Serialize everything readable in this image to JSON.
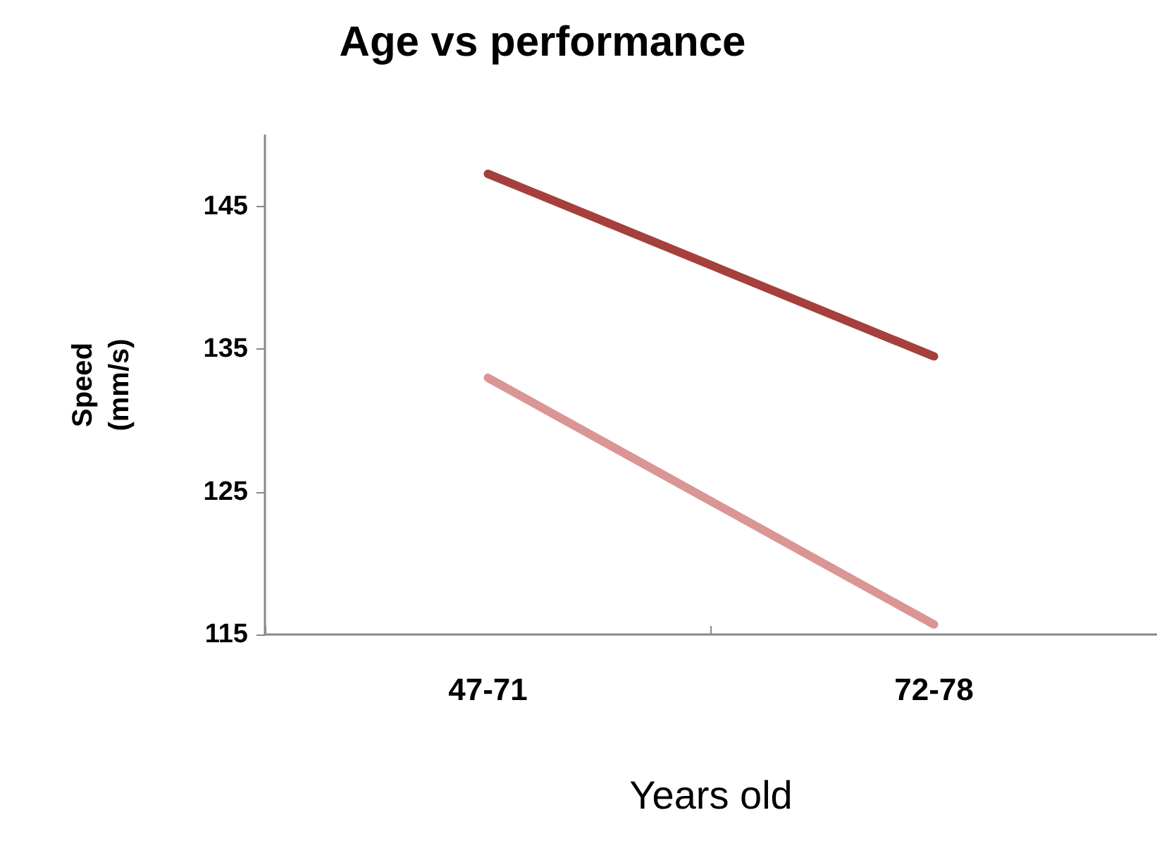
{
  "chart_data": {
    "type": "line",
    "title": "Age vs performance",
    "xlabel": "Years old",
    "ylabel": "Speed\n(mm/s)",
    "categories": [
      "47-71",
      "72-78"
    ],
    "series": [
      {
        "color": "#a5403d",
        "values": [
          147.3,
          134.5
        ]
      },
      {
        "color": "#d99694",
        "values": [
          133,
          115.7
        ]
      }
    ],
    "ylim": [
      115,
      150
    ],
    "yticks": [
      115,
      125,
      135,
      145
    ],
    "grid": false,
    "marker": "none",
    "line_style": "solid"
  }
}
